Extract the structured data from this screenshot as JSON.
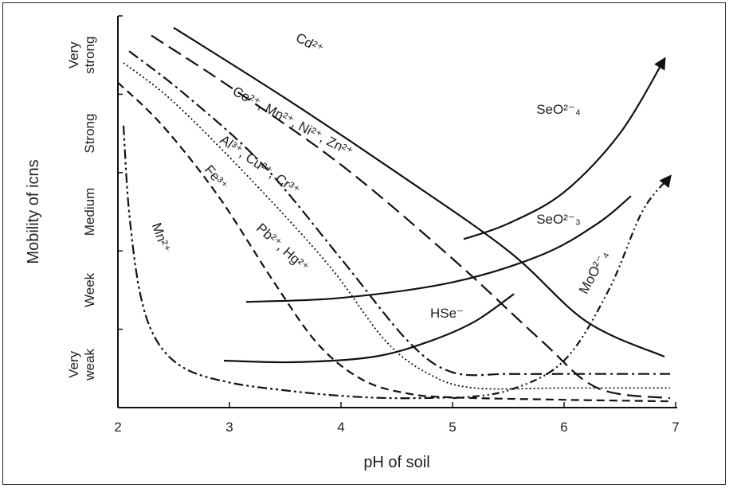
{
  "chart_data": {
    "type": "line",
    "title": "",
    "xlabel": "pH of soil",
    "ylabel": "Mobility of icns",
    "xlim": [
      2,
      7
    ],
    "ylim": [
      0,
      5
    ],
    "xticks": [
      "2",
      "3",
      "4",
      "5",
      "6",
      "7"
    ],
    "grid": false,
    "legend": "none",
    "mobility_levels": [
      {
        "line1": "Very",
        "line2": "strong",
        "center": 4.5
      },
      {
        "line1": "Strong",
        "line2": "",
        "center": 3.5
      },
      {
        "line1": "Medium",
        "line2": "",
        "center": 2.5
      },
      {
        "line1": "Week",
        "line2": "",
        "center": 1.5
      },
      {
        "line1": "Very",
        "line2": "weak",
        "center": 0.55
      }
    ],
    "series": [
      {
        "name": "Cd²⁺",
        "style": "solid",
        "x": [
          2.5,
          3.5,
          4.5,
          5.5,
          6.2,
          6.9
        ],
        "y": [
          4.85,
          3.95,
          3.0,
          2.0,
          1.1,
          0.65
        ]
      },
      {
        "name": "Co²⁺, Mn²⁺, Ni²⁺, Zn²⁺",
        "style": "long-dash",
        "x": [
          2.3,
          3.0,
          4.0,
          5.0,
          5.8,
          6.3,
          6.95
        ],
        "y": [
          4.75,
          4.1,
          3.1,
          1.9,
          0.85,
          0.25,
          0.12
        ]
      },
      {
        "name": "Al³⁺, Cu²⁺, Cr³⁺",
        "style": "dash-dot",
        "x": [
          2.1,
          2.6,
          3.3,
          4.0,
          4.6,
          5.0,
          5.5,
          6.0,
          6.95
        ],
        "y": [
          4.55,
          4.0,
          3.1,
          1.9,
          0.85,
          0.45,
          0.43,
          0.43,
          0.43
        ]
      },
      {
        "name": "Pb²⁺, Hg²⁺",
        "style": "dotted",
        "x": [
          2.05,
          2.5,
          3.2,
          3.9,
          4.4,
          4.8,
          5.2,
          6.0,
          6.95
        ],
        "y": [
          4.4,
          3.9,
          2.9,
          1.8,
          0.85,
          0.42,
          0.25,
          0.25,
          0.25
        ]
      },
      {
        "name": "Fe³⁺",
        "style": "dashed",
        "x": [
          2.0,
          2.4,
          2.9,
          3.4,
          3.8,
          4.2,
          4.6,
          5.0,
          6.0,
          6.95
        ],
        "y": [
          4.15,
          3.6,
          2.7,
          1.6,
          0.8,
          0.35,
          0.18,
          0.13,
          0.1,
          0.08
        ]
      },
      {
        "name": "Mn²⁺",
        "style": "dash-double-dot",
        "x": [
          2.05,
          2.1,
          2.2,
          2.35,
          2.6,
          3.0,
          3.5,
          4.0,
          4.5,
          5.0
        ],
        "y": [
          3.6,
          2.5,
          1.45,
          0.85,
          0.5,
          0.32,
          0.22,
          0.15,
          0.12,
          0.13
        ]
      },
      {
        "name": "SeO²⁻₄",
        "style": "solid-arrow",
        "x": [
          5.1,
          5.5,
          6.0,
          6.5,
          6.9
        ],
        "y": [
          2.15,
          2.35,
          2.75,
          3.5,
          4.45
        ]
      },
      {
        "name": "SeO²⁻₃",
        "style": "solid",
        "x": [
          3.15,
          4.0,
          5.0,
          5.8,
          6.3,
          6.6
        ],
        "y": [
          1.35,
          1.4,
          1.6,
          1.95,
          2.35,
          2.7
        ]
      },
      {
        "name": "HSe⁻",
        "style": "solid",
        "x": [
          2.95,
          3.6,
          4.3,
          4.8,
          5.2,
          5.55
        ],
        "y": [
          0.6,
          0.58,
          0.65,
          0.85,
          1.1,
          1.45
        ]
      },
      {
        "name": "MoO²⁻₄",
        "style": "dash-dot-dot-arrow",
        "x": [
          5.0,
          5.5,
          6.0,
          6.4,
          6.7,
          6.95
        ],
        "y": [
          0.12,
          0.22,
          0.6,
          1.5,
          2.5,
          2.95
        ]
      }
    ]
  }
}
